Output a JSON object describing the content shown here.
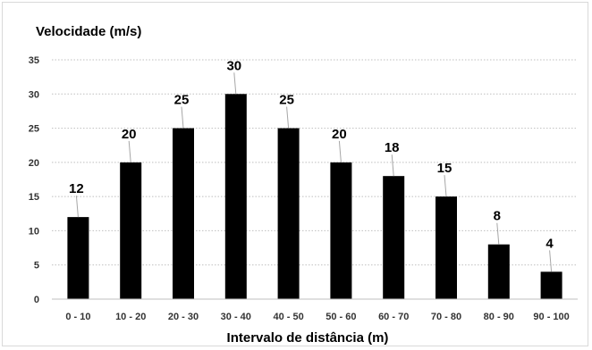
{
  "chart_data": {
    "type": "bar",
    "ylabel": "Velocidade (m/s)",
    "xlabel": "Intervalo de distância (m)",
    "categories": [
      "0 - 10",
      "10 - 20",
      "20 - 30",
      "30 - 40",
      "40 - 50",
      "50 - 60",
      "60 - 70",
      "70 - 80",
      "80 - 90",
      "90 - 100"
    ],
    "values": [
      12,
      20,
      25,
      30,
      25,
      20,
      18,
      15,
      8,
      4
    ],
    "data_labels": [
      "12",
      "20",
      "25",
      "30",
      "25",
      "20",
      "18",
      "15",
      "8",
      "4"
    ],
    "ylim": [
      0,
      35
    ],
    "yticks": [
      0,
      5,
      10,
      15,
      20,
      25,
      30,
      35
    ],
    "grid": "horizontal-dotted",
    "legend": "none",
    "bar_color": "#000000"
  }
}
